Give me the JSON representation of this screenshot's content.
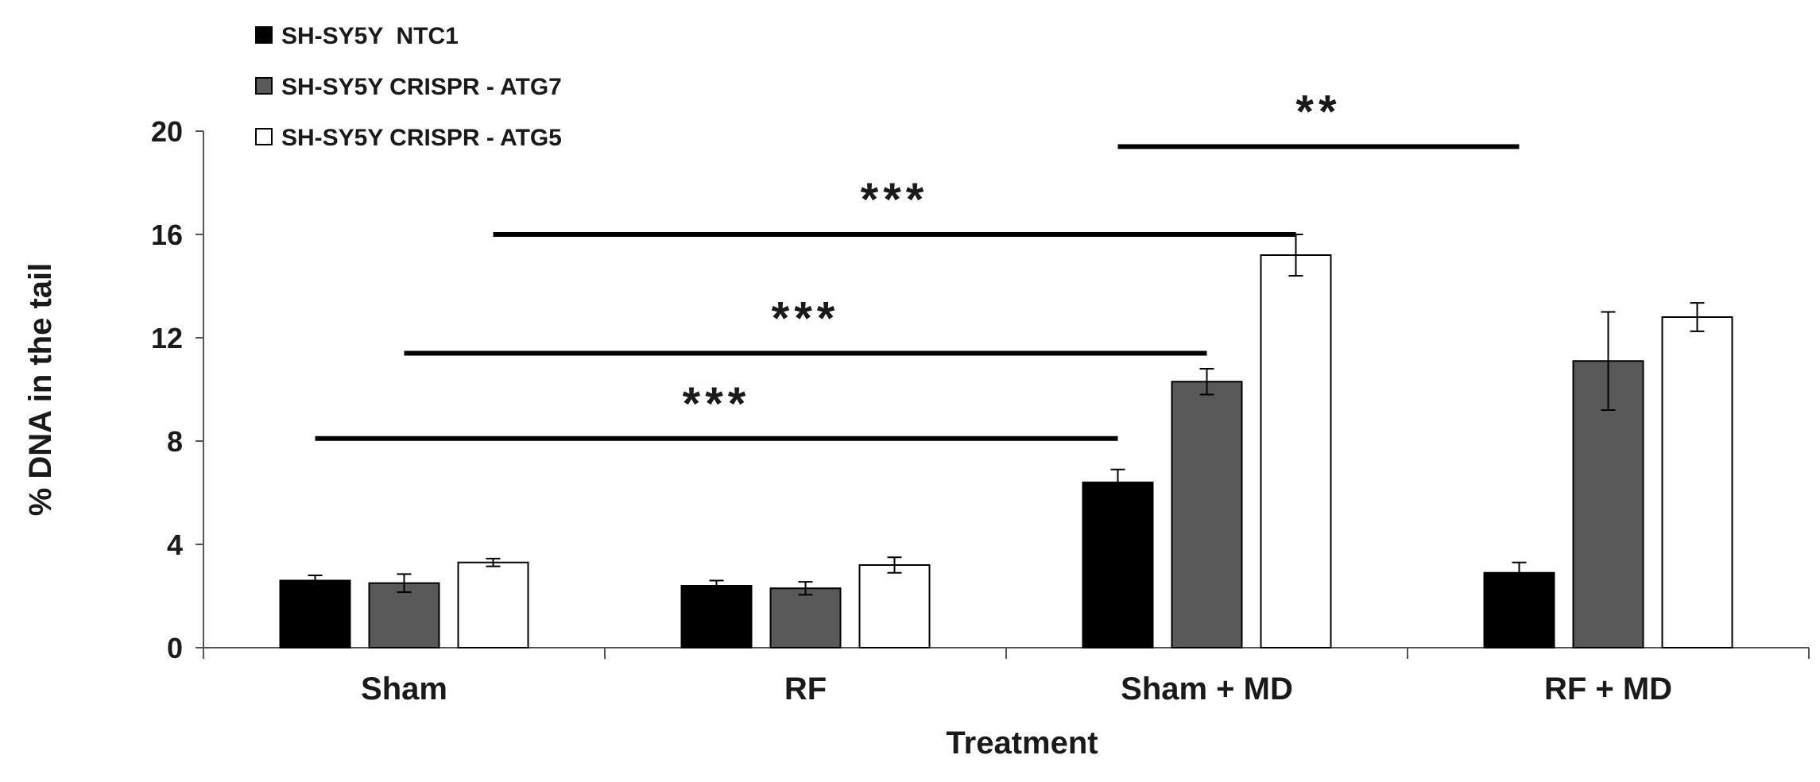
{
  "chart_data": {
    "type": "bar",
    "title": "",
    "xlabel": "Treatment",
    "ylabel": "% DNA in the tail",
    "ylim": [
      0,
      20
    ],
    "yticks": [
      "0",
      "4",
      "8",
      "12",
      "16",
      "20"
    ],
    "categories": [
      "Sham",
      "RF",
      "Sham + MD",
      "RF + MD"
    ],
    "series": [
      {
        "name": "SH-SY5Y  NTC1",
        "color": "#000000",
        "values": [
          2.6,
          2.4,
          6.4,
          2.9
        ],
        "errors": [
          0.2,
          0.2,
          0.5,
          0.4
        ]
      },
      {
        "name": "SH-SY5Y CRISPR - ATG7",
        "color": "#595959",
        "values": [
          2.5,
          2.3,
          10.3,
          11.1
        ],
        "errors": [
          0.35,
          0.25,
          0.5,
          1.9
        ]
      },
      {
        "name": "SH-SY5Y CRISPR - ATG5",
        "color": "#ffffff",
        "values": [
          3.3,
          3.2,
          15.2,
          12.8
        ],
        "errors": [
          0.15,
          0.3,
          0.8,
          0.55
        ]
      }
    ],
    "legend_position": "top-left",
    "significance": [
      {
        "label": "***",
        "value": 8.1,
        "from": {
          "category": 0,
          "series": 0
        },
        "to": {
          "category": 2,
          "series": 0
        }
      },
      {
        "label": "***",
        "value": 11.4,
        "from": {
          "category": 0,
          "series": 1
        },
        "to": {
          "category": 2,
          "series": 1
        }
      },
      {
        "label": "***",
        "value": 16.0,
        "from": {
          "category": 0,
          "series": 2
        },
        "to": {
          "category": 2,
          "series": 2
        }
      },
      {
        "label": "**",
        "value": 19.4,
        "from": {
          "category": 2,
          "series": 0
        },
        "to": {
          "category": 3,
          "series": 0
        }
      }
    ]
  }
}
